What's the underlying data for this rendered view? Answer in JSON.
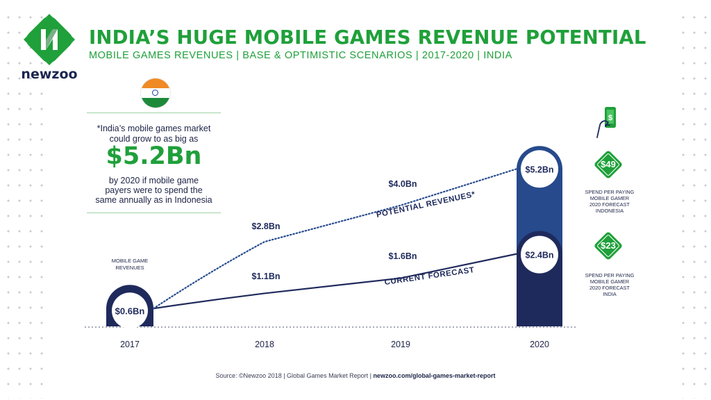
{
  "brand": {
    "logo_text": "newzoo",
    "green": "#1fa03a",
    "navy": "#1f2a5c",
    "blue": "#264a8c"
  },
  "header": {
    "title": "INDIA’S HUGE MOBILE GAMES REVENUE POTENTIAL",
    "subtitle": "MOBILE GAMES REVENUES | BASE & OPTIMISTIC SCENARIOS | 2017-2020 | INDIA"
  },
  "callout": {
    "flag_icon": "india-flag-icon",
    "line1": "*India’s mobile games market",
    "line2": "could grow to as big as",
    "big_value": "$5.2Bn",
    "line3": "by 2020 if mobile game",
    "line4": "payers were to spend the",
    "line5": "same annually as in Indonesia"
  },
  "side": {
    "phone_icon": "mobile-payment-icon",
    "indonesia_value": "$49",
    "indonesia_note": [
      "SPEND PER PAYING",
      "MOBILE GAMER",
      "2020 FORECAST",
      "INDONESIA"
    ],
    "india_value": "$23",
    "india_note": [
      "SPEND PER PAYING",
      "MOBILE GAMER",
      "2020 FORECAST",
      "INDIA"
    ]
  },
  "chart_data": {
    "type": "line",
    "x": [
      "2017",
      "2018",
      "2019",
      "2020"
    ],
    "unit": "US$ Bn",
    "series": [
      {
        "name": "CURRENT FORECAST",
        "values": [
          0.6,
          1.1,
          1.6,
          2.4
        ],
        "labels": [
          "$0.6Bn",
          "$1.1Bn",
          "$1.6Bn",
          "$2.4Bn"
        ],
        "style": "solid"
      },
      {
        "name": "POTENTIAL REVENUES*",
        "values": [
          0.6,
          2.8,
          4.0,
          5.2
        ],
        "labels": [
          "$0.6Bn",
          "$2.8Bn",
          "$4.0Bn",
          "$5.2Bn"
        ],
        "style": "dotted"
      }
    ],
    "start_label": [
      "MOBILE GAME",
      "REVENUES"
    ],
    "grid": false,
    "legend": "inline labels"
  },
  "source": {
    "text": "Source: ©Newzoo 2018 | Global Games Market Report | ",
    "link": "newzoo.com/global-games-market-report"
  }
}
